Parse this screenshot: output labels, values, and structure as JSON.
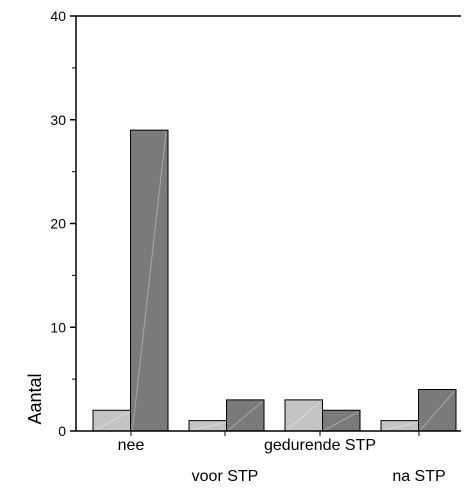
{
  "chart_data": {
    "type": "bar",
    "categories": [
      "nee",
      "voor STP",
      "gedurende STP",
      "na STP"
    ],
    "series": [
      {
        "values": [
          2,
          1,
          3,
          1
        ]
      },
      {
        "values": [
          29,
          3,
          2,
          4
        ]
      }
    ],
    "ylabel": "Aantal",
    "ylim": [
      0,
      40
    ],
    "yticks": [
      "0",
      "10",
      "20",
      "30",
      "40"
    ],
    "grid": false,
    "colors": {
      "series": [
        "#c4c4c4",
        "#7a7a7a"
      ],
      "bar_stroke": "#000000",
      "axis": "#000000"
    }
  }
}
